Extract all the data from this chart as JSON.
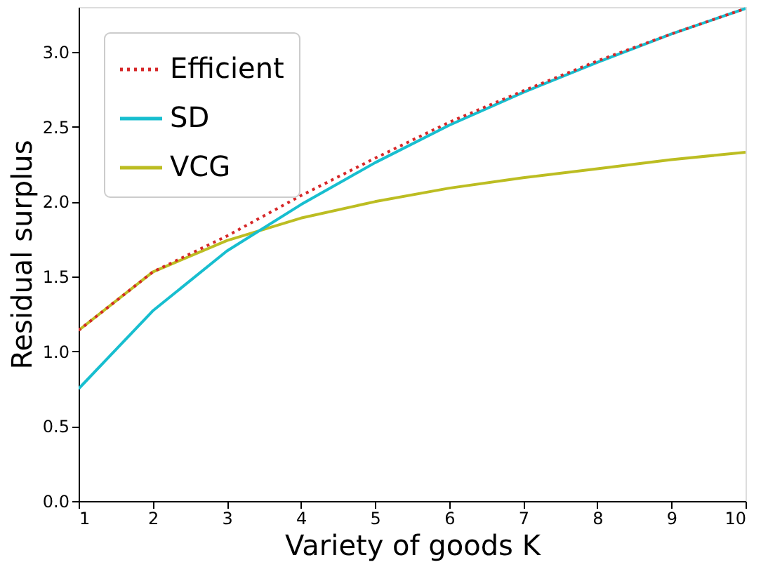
{
  "chart_data": {
    "type": "line",
    "xlabel": "Variety of goods K",
    "ylabel": "Residual surplus",
    "x": [
      1,
      2,
      3,
      4,
      5,
      6,
      7,
      8,
      9,
      10
    ],
    "series": [
      {
        "name": "Efficient",
        "color": "#d62728",
        "line_style": "dotted",
        "values": [
          1.14,
          1.53,
          1.77,
          2.04,
          2.29,
          2.53,
          2.74,
          2.94,
          3.12,
          3.29
        ]
      },
      {
        "name": "SD",
        "color": "#17becf",
        "line_style": "solid",
        "values": [
          0.75,
          1.27,
          1.67,
          1.98,
          2.26,
          2.51,
          2.73,
          2.93,
          3.12,
          3.29
        ]
      },
      {
        "name": "VCG",
        "color": "#bcbd22",
        "line_style": "solid",
        "values": [
          1.14,
          1.53,
          1.74,
          1.89,
          2.0,
          2.09,
          2.16,
          2.22,
          2.28,
          2.33
        ]
      }
    ],
    "xlim": [
      1,
      10
    ],
    "xticks": [
      1,
      2,
      3,
      4,
      5,
      6,
      7,
      8,
      9,
      10
    ],
    "ylim": [
      0,
      3.3
    ],
    "yticks": [
      {
        "value": 0,
        "label": "0.0"
      },
      {
        "value": 0.5,
        "label": "0.5"
      },
      {
        "value": 1,
        "label": "1.0"
      },
      {
        "value": 1.5,
        "label": "1.5"
      },
      {
        "value": 2,
        "label": "2.0"
      },
      {
        "value": 2.5,
        "label": "2.5"
      },
      {
        "value": 3,
        "label": "3.0"
      }
    ],
    "grid": false,
    "legend": "top left",
    "marker": "none"
  }
}
